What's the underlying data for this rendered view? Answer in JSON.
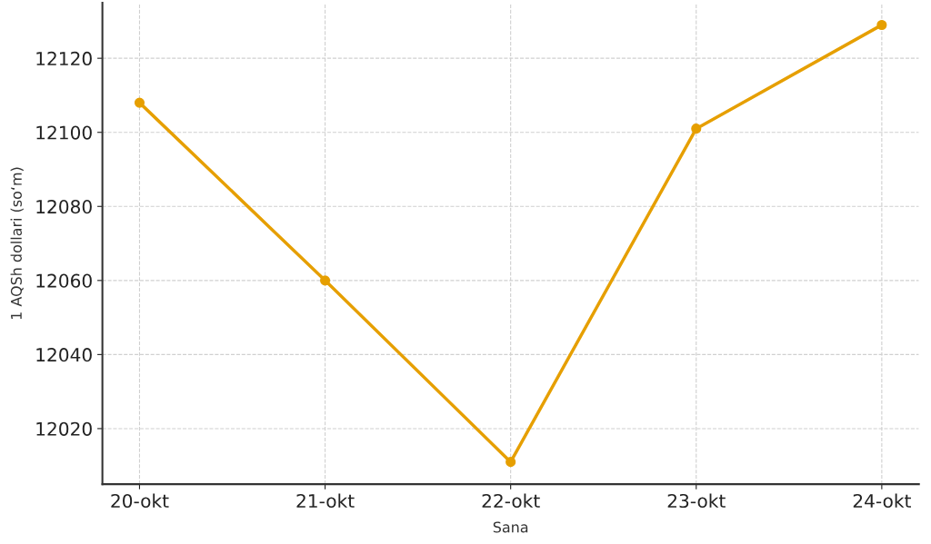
{
  "chart_data": {
    "type": "line",
    "xlabel": "Sana",
    "ylabel": "1 AQSh dollari (so‘m)",
    "categories": [
      "20-okt",
      "21-okt",
      "22-okt",
      "23-okt",
      "24-okt"
    ],
    "series": [
      {
        "color": "#e69f00",
        "values": [
          12108,
          12060,
          12011,
          12101,
          12129
        ]
      }
    ],
    "ylim": [
      12005,
      12135
    ],
    "yticks": [
      12020,
      12040,
      12060,
      12080,
      12100,
      12120
    ],
    "grid": true,
    "marker": "circle",
    "line_style": "solid",
    "legend": false
  }
}
